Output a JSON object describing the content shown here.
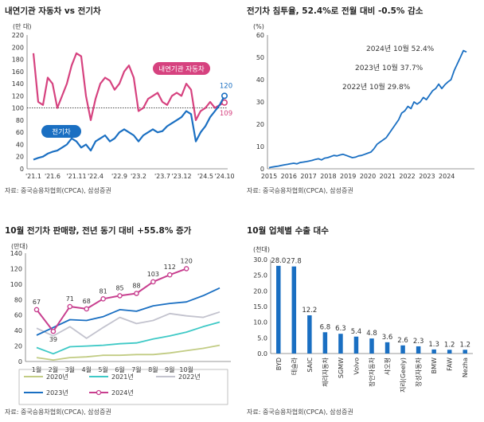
{
  "charts": [
    {
      "title": "내연기관 자동차 vs 전기차",
      "source": "자료: 중국승용차협회(CPCA), 삼성증권",
      "type": "line",
      "unit_label": "(만 대)",
      "ylim": [
        0,
        220
      ],
      "yticks": [
        "0",
        "20",
        "40",
        "60",
        "80",
        "100",
        "120",
        "140",
        "160",
        "180",
        "200",
        "220"
      ],
      "xtick_labels": [
        "'21.1",
        "'21.6",
        "'21.11",
        "'22.4",
        "'22.9",
        "'23.2",
        "'23.7",
        "'23.12",
        "'24.5",
        "'24.10"
      ],
      "reference_line": 100,
      "series": [
        {
          "name": "내연기관 자동차",
          "color": "#d6427f",
          "end_label": "109",
          "values": [
            190,
            110,
            105,
            150,
            140,
            100,
            120,
            140,
            170,
            190,
            185,
            120,
            80,
            115,
            140,
            150,
            145,
            130,
            140,
            160,
            170,
            150,
            95,
            100,
            115,
            120,
            125,
            110,
            105,
            120,
            125,
            120,
            140,
            130,
            80,
            95,
            100,
            110,
            100,
            105,
            109
          ]
        },
        {
          "name": "전기차",
          "color": "#1a6fc2",
          "end_label": "120",
          "values": [
            15,
            18,
            20,
            25,
            28,
            30,
            35,
            40,
            50,
            45,
            35,
            40,
            30,
            45,
            50,
            55,
            45,
            50,
            60,
            65,
            60,
            55,
            45,
            55,
            60,
            65,
            60,
            62,
            70,
            75,
            80,
            85,
            95,
            90,
            45,
            60,
            70,
            85,
            95,
            105,
            120
          ]
        }
      ]
    },
    {
      "title": "전기차 침투율, 52.4%로 전월 대비 -0.5% 감소",
      "source": "자료: 중국승용차협회(CPCA), 삼성증권",
      "type": "line",
      "unit_label": "(%)",
      "ylim": [
        0,
        60
      ],
      "yticks": [
        "0",
        "10",
        "20",
        "30",
        "40",
        "50",
        "60"
      ],
      "xtick_labels": [
        "2015",
        "2016",
        "2017",
        "2018",
        "2019",
        "2020",
        "2021",
        "2022",
        "2023",
        "2024"
      ],
      "annotations": [
        "2024년 10월  52.4%",
        "2023년 10월  37.7%",
        "2022년 10월  29.8%"
      ],
      "series": [
        {
          "name": "",
          "color": "#1a6fc2",
          "values": [
            0.5,
            0.8,
            1.0,
            1.2,
            1.5,
            1.8,
            2.0,
            2.3,
            2.5,
            2.2,
            2.8,
            3.0,
            3.2,
            3.5,
            3.8,
            4.2,
            4.5,
            4.0,
            4.8,
            5.0,
            5.5,
            6.0,
            5.8,
            6.2,
            6.5,
            6.0,
            5.5,
            5.0,
            5.2,
            5.8,
            6.0,
            6.5,
            7.0,
            7.5,
            9.0,
            11.0,
            12.0,
            13.0,
            14.0,
            16.0,
            18.0,
            20.0,
            22.0,
            25.0,
            26.0,
            28.0,
            27.0,
            30.0,
            29.0,
            30.0,
            32.0,
            31.0,
            33.0,
            35.0,
            36.0,
            38.0,
            36.0,
            37.7,
            39.0,
            40.0,
            44.0,
            47.0,
            50.0,
            53.0,
            52.4
          ]
        }
      ]
    },
    {
      "title": "10월 전기차 판매량, 전년 동기 대비 +55.8% 증가",
      "source": "자료: 중국승용차협회(CPCA), 삼성증권",
      "type": "line",
      "unit_label": "(만대)",
      "ylim": [
        0,
        140
      ],
      "yticks": [
        "0",
        "20",
        "40",
        "60",
        "80",
        "100",
        "120",
        "140"
      ],
      "categories": [
        "1월",
        "2월",
        "3월",
        "4월",
        "5월",
        "6월",
        "7월",
        "8월",
        "9월",
        "10월",
        "11월",
        "12월"
      ],
      "series": [
        {
          "name": "2020년",
          "color": "#c2cc84",
          "values": [
            5,
            2,
            5,
            6,
            8,
            8,
            9,
            9,
            11,
            14,
            17,
            21
          ]
        },
        {
          "name": "2021년",
          "color": "#3ec9c6",
          "values": [
            18,
            10,
            19,
            20,
            21,
            23,
            24,
            29,
            33,
            38,
            45,
            51
          ]
        },
        {
          "name": "2022년",
          "color": "#c3c3ce",
          "values": [
            43,
            33,
            45,
            30,
            44,
            57,
            49,
            53,
            62,
            59,
            57,
            64
          ]
        },
        {
          "name": "2023년",
          "color": "#1a6fc2",
          "values": [
            34,
            44,
            54,
            53,
            58,
            67,
            65,
            72,
            75,
            77,
            85,
            95
          ]
        },
        {
          "name": "2024년",
          "color": "#c83f8f",
          "values": [
            67,
            39,
            71,
            68,
            81,
            85,
            88,
            103,
            112,
            120
          ],
          "labels": [
            "67",
            "39",
            "71",
            "68",
            "81",
            "85",
            "88",
            "103",
            "112",
            "120"
          ]
        }
      ]
    },
    {
      "title": "10월 업체별 수출 대수",
      "source": "자료: 중국승용차협회(CPCA), 삼성증권",
      "type": "bar",
      "unit_label": "(천대)",
      "ylim": [
        0,
        30
      ],
      "yticks": [
        "0.0",
        "5.0",
        "10.0",
        "15.0",
        "20.0",
        "25.0",
        "30.0"
      ],
      "categories": [
        "BYD",
        "테슬라",
        "SAIC",
        "체리자동차",
        "SGMW",
        "Volvo",
        "장안자동차",
        "샤오펑",
        "지리(Geely)",
        "장성자동차",
        "BMW",
        "FAW",
        "Nezha"
      ],
      "values": [
        28.0,
        27.8,
        12.2,
        6.8,
        6.3,
        5.4,
        4.8,
        3.6,
        2.6,
        2.3,
        1.3,
        1.2,
        1.2
      ],
      "value_labels": [
        "28.0",
        "27.8",
        "12.2",
        "6.8",
        "6.3",
        "5.4",
        "4.8",
        "3.6",
        "2.6",
        "2.3",
        "1.3",
        "1.2",
        "1.2"
      ],
      "bar_color": "#1a6fc2"
    }
  ]
}
